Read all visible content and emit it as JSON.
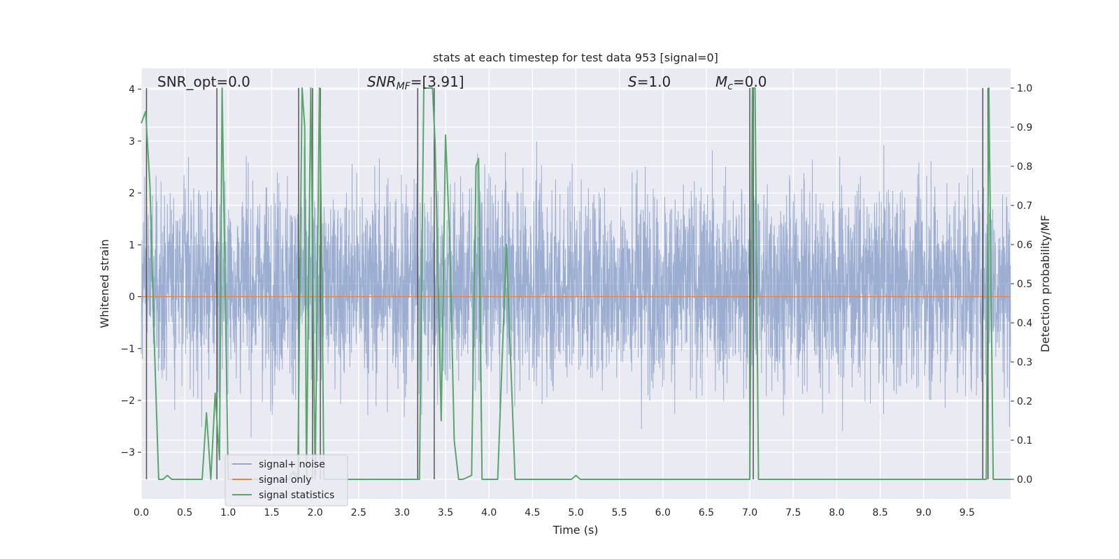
{
  "chart_data": {
    "type": "line",
    "title": "stats at each timestep for test data 953 [signal=0]",
    "xlabel": "Time (s)",
    "ylabel": "Whitened strain",
    "y2label": "Detection probability/MF",
    "xlim": [
      0,
      10
    ],
    "ylim": [
      -3.9,
      4.4
    ],
    "y2lim": [
      -0.05,
      1.05
    ],
    "xticks": [
      "0.0",
      "0.5",
      "1.0",
      "1.5",
      "2.0",
      "2.5",
      "3.0",
      "3.5",
      "4.0",
      "4.5",
      "5.0",
      "5.5",
      "6.0",
      "6.5",
      "7.0",
      "7.5",
      "8.0",
      "8.5",
      "9.0",
      "9.5"
    ],
    "yticks": [
      "−3",
      "−2",
      "−1",
      "0",
      "1",
      "2",
      "3",
      "4"
    ],
    "y2ticks": [
      "0.0",
      "0.1",
      "0.2",
      "0.3",
      "0.4",
      "0.5",
      "0.6",
      "0.7",
      "0.8",
      "0.9",
      "1.0"
    ],
    "annotations": {
      "snr_opt": "SNR_opt=0.0",
      "snr_mf_base": "SNR",
      "snr_mf_sub": "MF",
      "snr_mf_value": "=[3.91]",
      "s_sym": "S",
      "s_value": "=1.0",
      "mc_sym": "M",
      "mc_sub": "c",
      "mc_value": "=0.0"
    },
    "grid": true,
    "legend_position": "lower-left",
    "series": [
      {
        "name": "signal+ noise",
        "color": "#4c72b0",
        "axis": "left",
        "description_stats": {
          "core_range": [
            -1.3,
            1.8
          ],
          "extremes": [
            -3.4,
            4.0
          ]
        }
      },
      {
        "name": "signal only",
        "color": "#dd8452",
        "axis": "left",
        "constant": 0.0
      },
      {
        "name": "signal statistics",
        "color": "#55a868",
        "axis": "right",
        "x": [
          0.0,
          0.05,
          0.1,
          0.15,
          0.2,
          0.25,
          0.3,
          0.35,
          0.4,
          0.5,
          0.6,
          0.7,
          0.75,
          0.8,
          0.85,
          0.9,
          0.93,
          0.95,
          1.0,
          1.05,
          1.1,
          1.2,
          1.3,
          1.4,
          1.5,
          1.6,
          1.7,
          1.75,
          1.8,
          1.85,
          1.88,
          1.9,
          1.95,
          2.0,
          2.05,
          2.08,
          2.1,
          2.15,
          2.2,
          2.5,
          2.8,
          3.0,
          3.1,
          3.2,
          3.25,
          3.3,
          3.35,
          3.38,
          3.45,
          3.5,
          3.55,
          3.6,
          3.65,
          3.7,
          3.8,
          3.85,
          3.88,
          3.92,
          4.0,
          4.05,
          4.1,
          4.15,
          4.2,
          4.25,
          4.3,
          4.35,
          4.5,
          4.8,
          4.95,
          5.0,
          5.05,
          5.5,
          6.0,
          6.5,
          6.95,
          7.0,
          7.03,
          7.06,
          7.1,
          7.2,
          7.5,
          8.0,
          8.5,
          9.0,
          9.5,
          9.68,
          9.72,
          9.75,
          9.8,
          9.9,
          10.0
        ],
        "y": [
          0.91,
          0.94,
          0.75,
          0.35,
          0.0,
          0.0,
          0.01,
          0.0,
          0.0,
          0.0,
          0.0,
          0.0,
          0.17,
          0.0,
          0.22,
          0.05,
          1.0,
          0.7,
          0.0,
          0.0,
          0.0,
          0.0,
          0.0,
          0.0,
          0.0,
          0.0,
          0.0,
          0.02,
          0.0,
          1.0,
          0.9,
          0.0,
          1.0,
          0.0,
          1.0,
          0.5,
          0.0,
          0.0,
          0.0,
          0.0,
          0.0,
          0.0,
          0.0,
          0.0,
          1.0,
          1.0,
          1.0,
          0.86,
          0.15,
          0.88,
          0.6,
          0.1,
          0.0,
          0.0,
          0.01,
          0.8,
          0.82,
          0.0,
          0.0,
          0.0,
          0.0,
          0.3,
          0.6,
          0.3,
          0.0,
          0.0,
          0.0,
          0.0,
          0.0,
          0.01,
          0.0,
          0.0,
          0.0,
          0.0,
          0.0,
          0.0,
          1.0,
          1.0,
          0.0,
          0.0,
          0.0,
          0.0,
          0.0,
          0.0,
          0.0,
          0.0,
          0.0,
          1.0,
          0.0,
          0.0,
          0.0
        ]
      }
    ],
    "vertical_markers_x": [
      0.06,
      0.87,
      1.81,
      1.97,
      2.06,
      3.18,
      3.37,
      7.0,
      7.04,
      9.68,
      9.74
    ]
  }
}
